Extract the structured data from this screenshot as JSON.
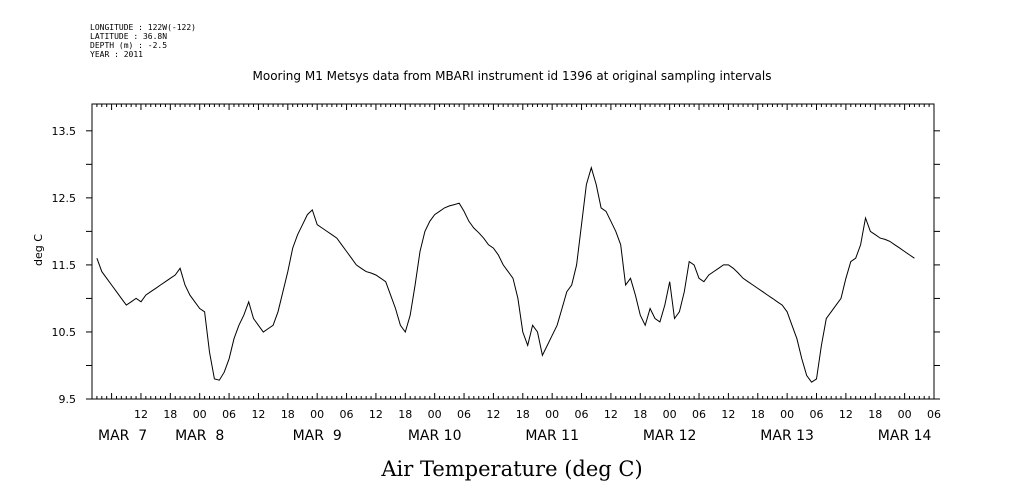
{
  "meta": {
    "longitude": "LONGITUDE : 122W(-122)",
    "latitude": "LATITUDE : 36.8N",
    "depth": "DEPTH (m) : -2.5",
    "year": "YEAR : 2011"
  },
  "chart_data": {
    "type": "line",
    "title": "Mooring M1 Metsys data from MBARI instrument id 1396 at original sampling intervals",
    "xlabel": "Air Temperature (deg C)",
    "ylabel": "deg C",
    "ylim": [
      9.5,
      13.9
    ],
    "yticks": [
      9.5,
      10.5,
      11.5,
      12.5,
      13.5
    ],
    "xlim_hours": [
      2,
      174
    ],
    "hour_ticks": [
      "12",
      "18",
      "00",
      "06",
      "12",
      "18",
      "00",
      "06",
      "12",
      "18",
      "00",
      "06",
      "12",
      "18",
      "00",
      "06",
      "12",
      "18",
      "00",
      "06",
      "12",
      "18",
      "00",
      "06",
      "12",
      "18",
      "00",
      "06"
    ],
    "date_labels": [
      "MAR  7",
      "MAR  8",
      "MAR  9",
      "MAR 10",
      "MAR 11",
      "MAR 12",
      "MAR 13",
      "MAR 14"
    ],
    "grid": false,
    "legend": "none",
    "line_color": "#000000",
    "series": [
      {
        "values": [
          [
            3.0,
            11.6
          ],
          [
            4.0,
            11.4
          ],
          [
            5.0,
            11.3
          ],
          [
            6.0,
            11.2
          ],
          [
            7.0,
            11.1
          ],
          [
            8.0,
            11.0
          ],
          [
            9.0,
            10.9
          ],
          [
            10.0,
            10.95
          ],
          [
            11.0,
            11.0
          ],
          [
            12.0,
            10.95
          ],
          [
            13.0,
            11.05
          ],
          [
            14.0,
            11.1
          ],
          [
            15.0,
            11.15
          ],
          [
            16.0,
            11.2
          ],
          [
            17.0,
            11.25
          ],
          [
            18.0,
            11.3
          ],
          [
            19.0,
            11.35
          ],
          [
            20.0,
            11.45
          ],
          [
            21.0,
            11.2
          ],
          [
            22.0,
            11.05
          ],
          [
            23.0,
            10.95
          ],
          [
            24.0,
            10.85
          ],
          [
            25.0,
            10.8
          ],
          [
            26.0,
            10.2
          ],
          [
            27.0,
            9.8
          ],
          [
            28.0,
            9.78
          ],
          [
            29.0,
            9.9
          ],
          [
            30.0,
            10.1
          ],
          [
            31.0,
            10.4
          ],
          [
            32.0,
            10.6
          ],
          [
            33.0,
            10.75
          ],
          [
            34.0,
            10.95
          ],
          [
            35.0,
            10.7
          ],
          [
            36.0,
            10.6
          ],
          [
            37.0,
            10.5
          ],
          [
            38.0,
            10.55
          ],
          [
            39.0,
            10.6
          ],
          [
            40.0,
            10.8
          ],
          [
            41.0,
            11.1
          ],
          [
            42.0,
            11.4
          ],
          [
            43.0,
            11.75
          ],
          [
            44.0,
            11.95
          ],
          [
            45.0,
            12.1
          ],
          [
            46.0,
            12.25
          ],
          [
            47.0,
            12.32
          ],
          [
            48.0,
            12.1
          ],
          [
            49.0,
            12.05
          ],
          [
            50.0,
            12.0
          ],
          [
            51.0,
            11.95
          ],
          [
            52.0,
            11.9
          ],
          [
            53.0,
            11.8
          ],
          [
            54.0,
            11.7
          ],
          [
            55.0,
            11.6
          ],
          [
            56.0,
            11.5
          ],
          [
            57.0,
            11.45
          ],
          [
            58.0,
            11.4
          ],
          [
            59.0,
            11.38
          ],
          [
            60.0,
            11.35
          ],
          [
            61.0,
            11.3
          ],
          [
            62.0,
            11.25
          ],
          [
            63.0,
            11.05
          ],
          [
            64.0,
            10.85
          ],
          [
            65.0,
            10.6
          ],
          [
            66.0,
            10.5
          ],
          [
            67.0,
            10.75
          ],
          [
            68.0,
            11.2
          ],
          [
            69.0,
            11.7
          ],
          [
            70.0,
            12.0
          ],
          [
            71.0,
            12.15
          ],
          [
            72.0,
            12.25
          ],
          [
            73.0,
            12.3
          ],
          [
            74.0,
            12.35
          ],
          [
            75.0,
            12.38
          ],
          [
            76.0,
            12.4
          ],
          [
            77.0,
            12.42
          ],
          [
            78.0,
            12.3
          ],
          [
            79.0,
            12.15
          ],
          [
            80.0,
            12.05
          ],
          [
            81.0,
            11.98
          ],
          [
            82.0,
            11.9
          ],
          [
            83.0,
            11.8
          ],
          [
            84.0,
            11.75
          ],
          [
            85.0,
            11.65
          ],
          [
            86.0,
            11.5
          ],
          [
            87.0,
            11.4
          ],
          [
            88.0,
            11.3
          ],
          [
            89.0,
            11.0
          ],
          [
            90.0,
            10.5
          ],
          [
            91.0,
            10.3
          ],
          [
            92.0,
            10.6
          ],
          [
            93.0,
            10.5
          ],
          [
            94.0,
            10.15
          ],
          [
            95.0,
            10.3
          ],
          [
            96.0,
            10.45
          ],
          [
            97.0,
            10.6
          ],
          [
            98.0,
            10.85
          ],
          [
            99.0,
            11.1
          ],
          [
            100.0,
            11.2
          ],
          [
            101.0,
            11.5
          ],
          [
            102.0,
            12.1
          ],
          [
            103.0,
            12.7
          ],
          [
            104.0,
            12.95
          ],
          [
            105.0,
            12.7
          ],
          [
            106.0,
            12.35
          ],
          [
            107.0,
            12.3
          ],
          [
            108.0,
            12.15
          ],
          [
            109.0,
            12.0
          ],
          [
            110.0,
            11.8
          ],
          [
            111.0,
            11.2
          ],
          [
            112.0,
            11.3
          ],
          [
            113.0,
            11.05
          ],
          [
            114.0,
            10.75
          ],
          [
            115.0,
            10.6
          ],
          [
            116.0,
            10.85
          ],
          [
            117.0,
            10.7
          ],
          [
            118.0,
            10.65
          ],
          [
            119.0,
            10.9
          ],
          [
            120.0,
            11.25
          ],
          [
            121.0,
            10.7
          ],
          [
            122.0,
            10.8
          ],
          [
            123.0,
            11.1
          ],
          [
            124.0,
            11.55
          ],
          [
            125.0,
            11.5
          ],
          [
            126.0,
            11.3
          ],
          [
            127.0,
            11.25
          ],
          [
            128.0,
            11.35
          ],
          [
            129.0,
            11.4
          ],
          [
            130.0,
            11.45
          ],
          [
            131.0,
            11.5
          ],
          [
            132.0,
            11.5
          ],
          [
            133.0,
            11.45
          ],
          [
            134.0,
            11.38
          ],
          [
            135.0,
            11.3
          ],
          [
            136.0,
            11.25
          ],
          [
            137.0,
            11.2
          ],
          [
            138.0,
            11.15
          ],
          [
            139.0,
            11.1
          ],
          [
            140.0,
            11.05
          ],
          [
            141.0,
            11.0
          ],
          [
            142.0,
            10.95
          ],
          [
            143.0,
            10.9
          ],
          [
            144.0,
            10.8
          ],
          [
            145.0,
            10.6
          ],
          [
            146.0,
            10.4
          ],
          [
            147.0,
            10.1
          ],
          [
            148.0,
            9.85
          ],
          [
            149.0,
            9.75
          ],
          [
            150.0,
            9.8
          ],
          [
            151.0,
            10.3
          ],
          [
            152.0,
            10.7
          ],
          [
            153.0,
            10.8
          ],
          [
            154.0,
            10.9
          ],
          [
            155.0,
            11.0
          ],
          [
            156.0,
            11.3
          ],
          [
            157.0,
            11.55
          ],
          [
            158.0,
            11.6
          ],
          [
            159.0,
            11.8
          ],
          [
            160.0,
            12.2
          ],
          [
            161.0,
            12.0
          ],
          [
            162.0,
            11.95
          ],
          [
            163.0,
            11.9
          ],
          [
            164.0,
            11.88
          ],
          [
            165.0,
            11.85
          ],
          [
            166.0,
            11.8
          ],
          [
            167.0,
            11.75
          ],
          [
            168.0,
            11.7
          ],
          [
            169.0,
            11.65
          ],
          [
            170.0,
            11.6
          ]
        ]
      }
    ]
  }
}
